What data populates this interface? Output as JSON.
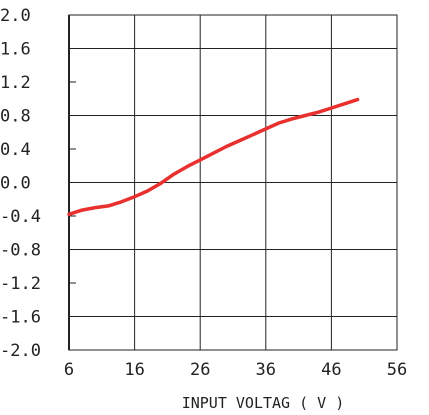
{
  "chart_data": {
    "type": "line",
    "title": "",
    "xlabel": "INPUT VOLTAG ( V )",
    "ylabel": "",
    "xlim": [
      6,
      56
    ],
    "ylim": [
      -2.0,
      2.0
    ],
    "x_ticks": [
      "6",
      "16",
      "26",
      "36",
      "46",
      "56"
    ],
    "y_ticks": [
      "2.0",
      "1.6",
      "1.2",
      "0.8",
      "0.4",
      "0.0",
      "-0.4",
      "-0.8",
      "-1.2",
      "-1.6",
      "-2.0"
    ],
    "grid": true,
    "line_color": "#e8302e",
    "series": [
      {
        "x": [
          6,
          8,
          10,
          12,
          14,
          16,
          18,
          20,
          22,
          24,
          26,
          28,
          30,
          32,
          34,
          36,
          38,
          40,
          42,
          44,
          46,
          48,
          50
        ],
        "y": [
          -0.38,
          -0.33,
          -0.3,
          -0.28,
          -0.23,
          -0.17,
          -0.1,
          -0.01,
          0.1,
          0.19,
          0.27,
          0.35,
          0.43,
          0.5,
          0.57,
          0.64,
          0.71,
          0.76,
          0.8,
          0.84,
          0.89,
          0.94,
          0.99
        ]
      }
    ]
  }
}
